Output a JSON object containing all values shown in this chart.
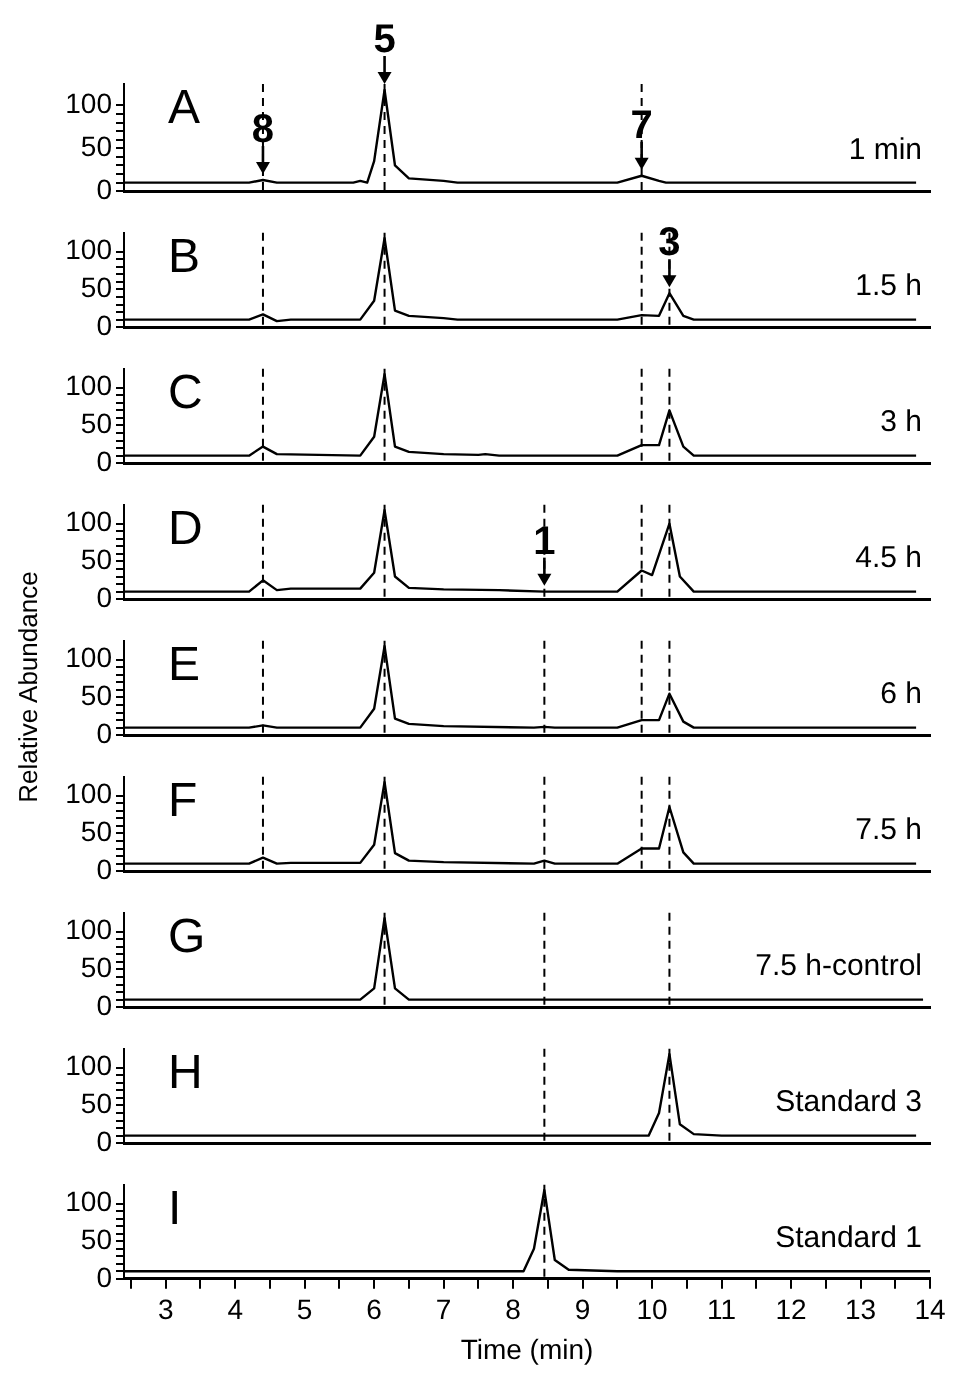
{
  "chart_data": [
    {
      "type": "line",
      "title": "A",
      "subtitle": "1 min",
      "xlim": [
        2.4,
        14
      ],
      "ylim": [
        0,
        125
      ],
      "yticks": [
        0,
        {
          "value": 10,
          "label": null
        },
        {
          "value": 20,
          "label": null
        },
        {
          "value": 30,
          "label": null
        },
        {
          "value": 40,
          "label": null
        },
        50,
        {
          "value": 60,
          "label": null
        },
        {
          "value": 70,
          "label": null
        },
        {
          "value": 80,
          "label": null
        },
        {
          "value": 90,
          "label": null
        },
        100
      ],
      "tick_labels": "y",
      "marker": "none",
      "line_style": "solid",
      "series": [
        {
          "color": "#000000",
          "x": [
            2.4,
            4.2,
            4.4,
            4.6,
            5.7,
            5.8,
            5.9,
            6.0,
            6.15,
            6.3,
            6.5,
            7.0,
            7.2,
            9.5,
            9.85,
            10.1,
            10.2,
            13.8
          ],
          "values": [
            10,
            10,
            13,
            10,
            10,
            12,
            10,
            35,
            118,
            30,
            15,
            12,
            10,
            10,
            18,
            12,
            10,
            10
          ]
        }
      ],
      "ref_lines": [
        {
          "axis": "x",
          "value": 4.4,
          "color": "#000000",
          "line_style": "dashed"
        },
        {
          "axis": "x",
          "value": 6.15,
          "color": "#000000",
          "line_style": "dashed"
        },
        {
          "axis": "x",
          "value": 9.85,
          "color": "#000000",
          "line_style": "dashed"
        }
      ],
      "annotations": [
        {
          "text": "8",
          "x": 4.4,
          "y": 13
        },
        {
          "text": "5",
          "x": 6.15,
          "y": 118
        },
        {
          "text": "7",
          "x": 9.85,
          "y": 18
        }
      ]
    },
    {
      "type": "line",
      "title": "B",
      "subtitle": "1.5 h",
      "xlim": [
        2.4,
        14
      ],
      "ylim": [
        0,
        125
      ],
      "yticks": [
        0,
        {
          "value": 10,
          "label": null
        },
        {
          "value": 20,
          "label": null
        },
        {
          "value": 30,
          "label": null
        },
        {
          "value": 40,
          "label": null
        },
        50,
        {
          "value": 60,
          "label": null
        },
        {
          "value": 70,
          "label": null
        },
        {
          "value": 80,
          "label": null
        },
        {
          "value": 90,
          "label": null
        },
        100
      ],
      "tick_labels": "y",
      "marker": "none",
      "line_style": "solid",
      "series": [
        {
          "color": "#000000",
          "x": [
            2.4,
            4.2,
            4.4,
            4.6,
            4.8,
            5.8,
            6.0,
            6.15,
            6.3,
            6.5,
            7.0,
            7.2,
            9.5,
            9.85,
            10.1,
            10.25,
            10.45,
            10.6,
            13.8
          ],
          "values": [
            10,
            10,
            17,
            8,
            10,
            10,
            35,
            118,
            22,
            15,
            12,
            10,
            10,
            16,
            15,
            45,
            15,
            10,
            10
          ]
        }
      ],
      "ref_lines": [
        {
          "axis": "x",
          "value": 4.4,
          "color": "#000000",
          "line_style": "dashed"
        },
        {
          "axis": "x",
          "value": 6.15,
          "color": "#000000",
          "line_style": "dashed"
        },
        {
          "axis": "x",
          "value": 9.85,
          "color": "#000000",
          "line_style": "dashed"
        },
        {
          "axis": "x",
          "value": 10.25,
          "color": "#000000",
          "line_style": "dashed"
        }
      ],
      "annotations": [
        {
          "text": "3",
          "x": 10.25,
          "y": 45
        }
      ]
    },
    {
      "type": "line",
      "title": "C",
      "subtitle": "3 h",
      "xlim": [
        2.4,
        14
      ],
      "ylim": [
        0,
        125
      ],
      "yticks": [
        0,
        {
          "value": 10,
          "label": null
        },
        {
          "value": 20,
          "label": null
        },
        {
          "value": 30,
          "label": null
        },
        {
          "value": 40,
          "label": null
        },
        50,
        {
          "value": 60,
          "label": null
        },
        {
          "value": 70,
          "label": null
        },
        {
          "value": 80,
          "label": null
        },
        {
          "value": 90,
          "label": null
        },
        100
      ],
      "tick_labels": "y",
      "marker": "none",
      "line_style": "solid",
      "series": [
        {
          "color": "#000000",
          "x": [
            2.4,
            4.2,
            4.4,
            4.6,
            5.8,
            6.0,
            6.15,
            6.3,
            6.5,
            7.0,
            7.5,
            7.6,
            7.8,
            9.5,
            9.85,
            10.1,
            10.25,
            10.45,
            10.6,
            13.8
          ],
          "values": [
            10,
            10,
            22,
            12,
            10,
            35,
            118,
            22,
            15,
            12,
            11,
            12,
            10,
            10,
            24,
            24,
            70,
            22,
            10,
            10
          ]
        }
      ],
      "ref_lines": [
        {
          "axis": "x",
          "value": 4.4,
          "color": "#000000",
          "line_style": "dashed"
        },
        {
          "axis": "x",
          "value": 6.15,
          "color": "#000000",
          "line_style": "dashed"
        },
        {
          "axis": "x",
          "value": 9.85,
          "color": "#000000",
          "line_style": "dashed"
        },
        {
          "axis": "x",
          "value": 10.25,
          "color": "#000000",
          "line_style": "dashed"
        }
      ]
    },
    {
      "type": "line",
      "title": "D",
      "subtitle": "4.5 h",
      "xlim": [
        2.4,
        14
      ],
      "ylim": [
        0,
        125
      ],
      "yticks": [
        0,
        {
          "value": 10,
          "label": null
        },
        {
          "value": 20,
          "label": null
        },
        {
          "value": 30,
          "label": null
        },
        {
          "value": 40,
          "label": null
        },
        50,
        {
          "value": 60,
          "label": null
        },
        {
          "value": 70,
          "label": null
        },
        {
          "value": 80,
          "label": null
        },
        {
          "value": 90,
          "label": null
        },
        100
      ],
      "tick_labels": "y",
      "marker": "none",
      "line_style": "solid",
      "series": [
        {
          "color": "#000000",
          "x": [
            2.4,
            4.2,
            4.4,
            4.6,
            4.8,
            5.8,
            6.0,
            6.15,
            6.3,
            6.5,
            7.0,
            7.8,
            8.45,
            9.5,
            9.85,
            10.0,
            10.25,
            10.4,
            10.6,
            13.8
          ],
          "values": [
            10,
            10,
            25,
            12,
            14,
            14,
            35,
            118,
            30,
            15,
            13,
            12,
            10,
            10,
            38,
            32,
            100,
            30,
            10,
            10
          ]
        }
      ],
      "ref_lines": [
        {
          "axis": "x",
          "value": 4.4,
          "color": "#000000",
          "line_style": "dashed"
        },
        {
          "axis": "x",
          "value": 6.15,
          "color": "#000000",
          "line_style": "dashed"
        },
        {
          "axis": "x",
          "value": 8.45,
          "color": "#000000",
          "line_style": "dashed"
        },
        {
          "axis": "x",
          "value": 9.85,
          "color": "#000000",
          "line_style": "dashed"
        },
        {
          "axis": "x",
          "value": 10.25,
          "color": "#000000",
          "line_style": "dashed"
        }
      ],
      "annotations": [
        {
          "text": "1",
          "x": 8.45,
          "y": 10
        }
      ]
    },
    {
      "type": "line",
      "title": "E",
      "subtitle": "6 h",
      "ylabel": "Relative Abundance",
      "xlim": [
        2.4,
        14
      ],
      "ylim": [
        0,
        125
      ],
      "yticks": [
        0,
        {
          "value": 10,
          "label": null
        },
        {
          "value": 20,
          "label": null
        },
        {
          "value": 30,
          "label": null
        },
        {
          "value": 40,
          "label": null
        },
        50,
        {
          "value": 60,
          "label": null
        },
        {
          "value": 70,
          "label": null
        },
        {
          "value": 80,
          "label": null
        },
        {
          "value": 90,
          "label": null
        },
        100
      ],
      "tick_labels": "y",
      "marker": "none",
      "line_style": "solid",
      "series": [
        {
          "color": "#000000",
          "x": [
            2.4,
            4.2,
            4.4,
            4.6,
            5.8,
            6.0,
            6.15,
            6.3,
            6.5,
            7.0,
            8.3,
            8.45,
            8.6,
            9.5,
            9.85,
            10.1,
            10.25,
            10.45,
            10.6,
            13.8
          ],
          "values": [
            10,
            10,
            13,
            10,
            10,
            35,
            118,
            22,
            15,
            12,
            10,
            11,
            10,
            10,
            20,
            20,
            55,
            18,
            10,
            10
          ]
        }
      ],
      "ref_lines": [
        {
          "axis": "x",
          "value": 4.4,
          "color": "#000000",
          "line_style": "dashed"
        },
        {
          "axis": "x",
          "value": 6.15,
          "color": "#000000",
          "line_style": "dashed"
        },
        {
          "axis": "x",
          "value": 8.45,
          "color": "#000000",
          "line_style": "dashed"
        },
        {
          "axis": "x",
          "value": 9.85,
          "color": "#000000",
          "line_style": "dashed"
        },
        {
          "axis": "x",
          "value": 10.25,
          "color": "#000000",
          "line_style": "dashed"
        }
      ]
    },
    {
      "type": "line",
      "title": "F",
      "subtitle": "7.5 h",
      "xlim": [
        2.4,
        14
      ],
      "ylim": [
        0,
        125
      ],
      "yticks": [
        0,
        {
          "value": 10,
          "label": null
        },
        {
          "value": 20,
          "label": null
        },
        {
          "value": 30,
          "label": null
        },
        {
          "value": 40,
          "label": null
        },
        50,
        {
          "value": 60,
          "label": null
        },
        {
          "value": 70,
          "label": null
        },
        {
          "value": 80,
          "label": null
        },
        {
          "value": 90,
          "label": null
        },
        100
      ],
      "tick_labels": "y",
      "marker": "none",
      "line_style": "solid",
      "series": [
        {
          "color": "#000000",
          "x": [
            2.4,
            4.2,
            4.4,
            4.6,
            4.8,
            5.8,
            6.0,
            6.15,
            6.3,
            6.5,
            7.0,
            8.3,
            8.45,
            8.6,
            9.5,
            9.85,
            10.1,
            10.25,
            10.45,
            10.6,
            13.8
          ],
          "values": [
            10,
            10,
            18,
            10,
            11,
            11,
            35,
            118,
            24,
            14,
            12,
            10,
            14,
            10,
            10,
            30,
            30,
            85,
            25,
            10,
            10
          ]
        }
      ],
      "ref_lines": [
        {
          "axis": "x",
          "value": 4.4,
          "color": "#000000",
          "line_style": "dashed"
        },
        {
          "axis": "x",
          "value": 6.15,
          "color": "#000000",
          "line_style": "dashed"
        },
        {
          "axis": "x",
          "value": 8.45,
          "color": "#000000",
          "line_style": "dashed"
        },
        {
          "axis": "x",
          "value": 9.85,
          "color": "#000000",
          "line_style": "dashed"
        },
        {
          "axis": "x",
          "value": 10.25,
          "color": "#000000",
          "line_style": "dashed"
        }
      ]
    },
    {
      "type": "line",
      "title": "G",
      "subtitle": "7.5 h-control",
      "xlim": [
        2.4,
        14
      ],
      "ylim": [
        0,
        125
      ],
      "yticks": [
        0,
        {
          "value": 10,
          "label": null
        },
        {
          "value": 20,
          "label": null
        },
        {
          "value": 30,
          "label": null
        },
        {
          "value": 40,
          "label": null
        },
        50,
        {
          "value": 60,
          "label": null
        },
        {
          "value": 70,
          "label": null
        },
        {
          "value": 80,
          "label": null
        },
        {
          "value": 90,
          "label": null
        },
        100
      ],
      "tick_labels": "y",
      "marker": "none",
      "line_style": "solid",
      "series": [
        {
          "color": "#000000",
          "x": [
            2.4,
            5.8,
            6.0,
            6.15,
            6.3,
            6.5,
            13.9
          ],
          "values": [
            10,
            10,
            25,
            118,
            25,
            10,
            10
          ]
        }
      ],
      "ref_lines": [
        {
          "axis": "x",
          "value": 6.15,
          "color": "#000000",
          "line_style": "dashed"
        },
        {
          "axis": "x",
          "value": 8.45,
          "color": "#000000",
          "line_style": "dashed"
        },
        {
          "axis": "x",
          "value": 10.25,
          "color": "#000000",
          "line_style": "dashed"
        }
      ]
    },
    {
      "type": "line",
      "title": "H",
      "subtitle": "Standard 3",
      "xlim": [
        2.4,
        14
      ],
      "ylim": [
        0,
        125
      ],
      "yticks": [
        0,
        {
          "value": 10,
          "label": null
        },
        {
          "value": 20,
          "label": null
        },
        {
          "value": 30,
          "label": null
        },
        {
          "value": 40,
          "label": null
        },
        50,
        {
          "value": 60,
          "label": null
        },
        {
          "value": 70,
          "label": null
        },
        {
          "value": 80,
          "label": null
        },
        {
          "value": 90,
          "label": null
        },
        100
      ],
      "tick_labels": "y",
      "marker": "none",
      "line_style": "solid",
      "series": [
        {
          "color": "#000000",
          "x": [
            2.4,
            9.95,
            10.1,
            10.25,
            10.4,
            10.6,
            11.0,
            13.8
          ],
          "values": [
            10,
            10,
            40,
            118,
            25,
            12,
            10,
            10
          ]
        }
      ],
      "ref_lines": [
        {
          "axis": "x",
          "value": 8.45,
          "color": "#000000",
          "line_style": "dashed"
        },
        {
          "axis": "x",
          "value": 10.25,
          "color": "#000000",
          "line_style": "dashed"
        }
      ]
    },
    {
      "type": "line",
      "title": "I",
      "subtitle": "Standard 1",
      "xlabel": "Time (min)",
      "xlim": [
        2.4,
        14
      ],
      "xticks": [
        {
          "value": 2.5,
          "label": null
        },
        3,
        {
          "value": 3.5,
          "label": null
        },
        4,
        {
          "value": 4.5,
          "label": null
        },
        5,
        {
          "value": 5.5,
          "label": null
        },
        6,
        {
          "value": 6.5,
          "label": null
        },
        7,
        {
          "value": 7.5,
          "label": null
        },
        8,
        {
          "value": 8.5,
          "label": null
        },
        9,
        {
          "value": 9.5,
          "label": null
        },
        10,
        {
          "value": 10.5,
          "label": null
        },
        11,
        {
          "value": 11.5,
          "label": null
        },
        12,
        {
          "value": 12.5,
          "label": null
        },
        13,
        {
          "value": 13.5,
          "label": null
        },
        14
      ],
      "ylim": [
        0,
        125
      ],
      "yticks": [
        0,
        {
          "value": 10,
          "label": null
        },
        {
          "value": 20,
          "label": null
        },
        {
          "value": 30,
          "label": null
        },
        {
          "value": 40,
          "label": null
        },
        50,
        {
          "value": 60,
          "label": null
        },
        {
          "value": 70,
          "label": null
        },
        {
          "value": 80,
          "label": null
        },
        {
          "value": 90,
          "label": null
        },
        100
      ],
      "marker": "none",
      "line_style": "solid",
      "series": [
        {
          "color": "#000000",
          "x": [
            2.4,
            8.15,
            8.3,
            8.45,
            8.6,
            8.8,
            9.5,
            14
          ],
          "values": [
            10,
            10,
            40,
            118,
            25,
            12,
            10,
            10
          ]
        }
      ],
      "ref_lines": [
        {
          "axis": "x",
          "value": 8.45,
          "color": "#000000",
          "line_style": "dashed"
        }
      ]
    }
  ]
}
